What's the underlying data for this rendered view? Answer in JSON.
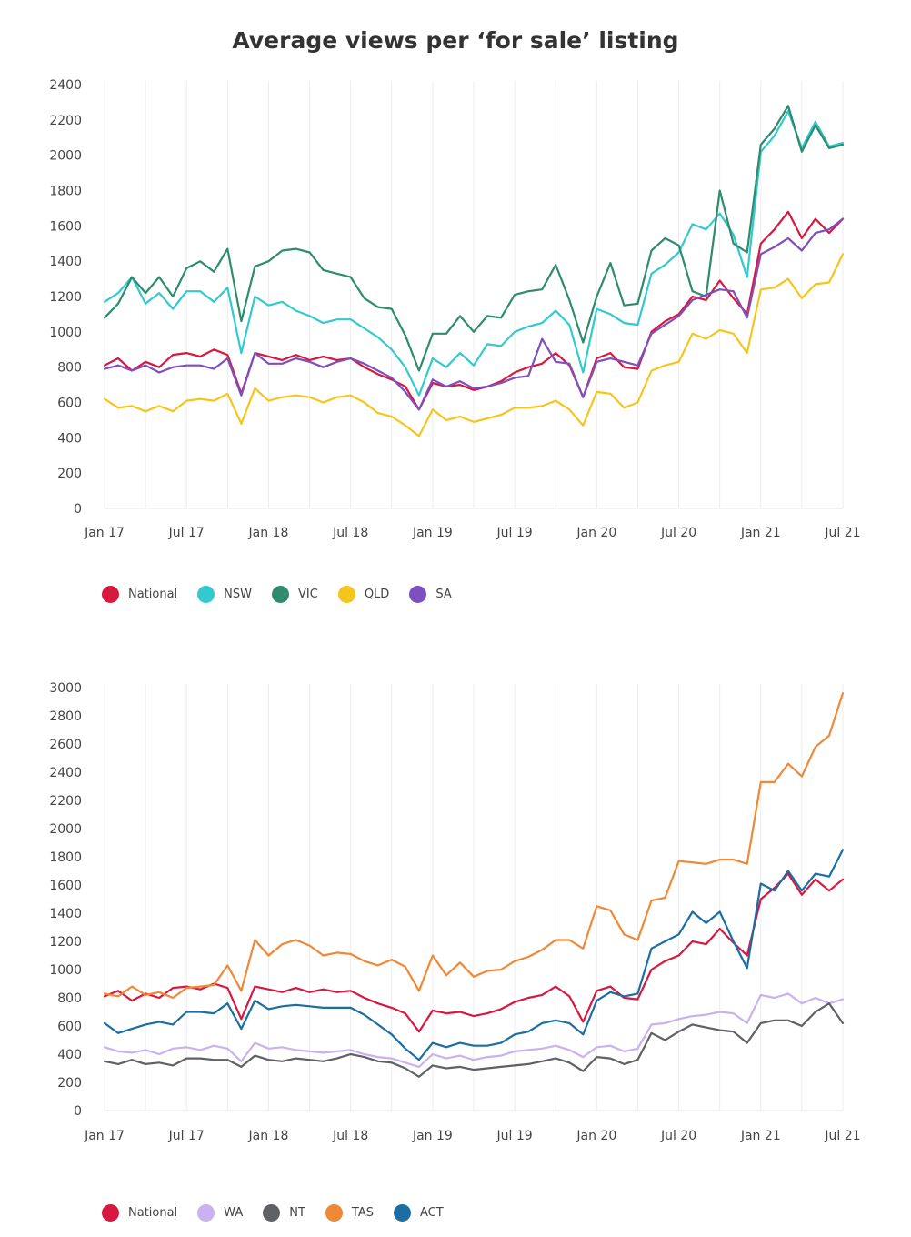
{
  "title": "Average views per ‘for sale’ listing",
  "chart_data": [
    {
      "type": "line",
      "x_tick_labels": [
        "Jan 17",
        "Jul 17",
        "Jan 18",
        "Jul 18",
        "Jan 19",
        "Jul 19",
        "Jan 20",
        "Jul 20",
        "Jan 21",
        "Jul 21"
      ],
      "ylim": [
        0,
        2400
      ],
      "y_ticks": [
        0,
        200,
        400,
        600,
        800,
        1000,
        1200,
        1400,
        1600,
        1800,
        2000,
        2200,
        2400
      ],
      "grid": "vertical",
      "legend_position": "bottom-left",
      "x_points": [
        "Jan 17",
        "Feb 17",
        "Mar 17",
        "Apr 17",
        "May 17",
        "Jun 17",
        "Jul 17",
        "Aug 17",
        "Sep 17",
        "Oct 17",
        "Nov 17",
        "Dec 17",
        "Jan 18",
        "Feb 18",
        "Mar 18",
        "Apr 18",
        "May 18",
        "Jun 18",
        "Jul 18",
        "Aug 18",
        "Sep 18",
        "Oct 18",
        "Nov 18",
        "Dec 18",
        "Jan 19",
        "Feb 19",
        "Mar 19",
        "Apr 19",
        "May 19",
        "Jun 19",
        "Jul 19",
        "Aug 19",
        "Sep 19",
        "Oct 19",
        "Nov 19",
        "Dec 19",
        "Jan 20",
        "Feb 20",
        "Mar 20",
        "Apr 20",
        "May 20",
        "Jun 20",
        "Jul 20",
        "Aug 20",
        "Sep 20",
        "Oct 20",
        "Nov 20",
        "Dec 20",
        "Jan 21",
        "Feb 21",
        "Mar 21",
        "Apr 21",
        "May 21",
        "Jun 21",
        "Jul 21"
      ],
      "series": [
        {
          "name": "National",
          "color": "#d7183f",
          "values": [
            810,
            850,
            780,
            830,
            800,
            870,
            880,
            860,
            900,
            870,
            650,
            880,
            860,
            840,
            870,
            840,
            860,
            840,
            850,
            800,
            760,
            730,
            690,
            560,
            710,
            690,
            700,
            670,
            690,
            720,
            770,
            800,
            820,
            880,
            810,
            630,
            850,
            880,
            800,
            790,
            1000,
            1060,
            1100,
            1200,
            1180,
            1290,
            1190,
            1100,
            1500,
            1580,
            1680,
            1530,
            1640,
            1560,
            1640
          ]
        },
        {
          "name": "NSW",
          "color": "#32c9cf",
          "values": [
            1170,
            1220,
            1310,
            1160,
            1220,
            1130,
            1230,
            1230,
            1170,
            1250,
            880,
            1200,
            1150,
            1170,
            1120,
            1090,
            1050,
            1070,
            1070,
            1020,
            970,
            900,
            800,
            640,
            850,
            800,
            880,
            810,
            930,
            920,
            1000,
            1030,
            1050,
            1120,
            1040,
            770,
            1130,
            1100,
            1050,
            1040,
            1330,
            1380,
            1450,
            1610,
            1580,
            1670,
            1550,
            1310,
            2020,
            2110,
            2250,
            2040,
            2190,
            2050,
            2070
          ]
        },
        {
          "name": "VIC",
          "color": "#2e8b6e",
          "values": [
            1080,
            1160,
            1310,
            1220,
            1310,
            1200,
            1360,
            1400,
            1340,
            1470,
            1060,
            1370,
            1400,
            1460,
            1470,
            1450,
            1350,
            1330,
            1310,
            1190,
            1140,
            1130,
            980,
            780,
            990,
            990,
            1090,
            1000,
            1090,
            1080,
            1210,
            1230,
            1240,
            1380,
            1180,
            940,
            1200,
            1390,
            1150,
            1160,
            1460,
            1530,
            1490,
            1230,
            1200,
            1800,
            1500,
            1450,
            2060,
            2150,
            2280,
            2020,
            2170,
            2040,
            2060
          ]
        },
        {
          "name": "QLD",
          "color": "#f5c51d",
          "values": [
            620,
            570,
            580,
            550,
            580,
            550,
            610,
            620,
            610,
            650,
            480,
            680,
            610,
            630,
            640,
            630,
            600,
            630,
            640,
            600,
            540,
            520,
            470,
            410,
            560,
            500,
            520,
            490,
            510,
            530,
            570,
            570,
            580,
            610,
            560,
            470,
            660,
            650,
            570,
            600,
            780,
            810,
            830,
            990,
            960,
            1010,
            990,
            880,
            1240,
            1250,
            1300,
            1190,
            1270,
            1280,
            1440
          ]
        },
        {
          "name": "SA",
          "color": "#7d4fbf",
          "values": [
            790,
            810,
            780,
            810,
            770,
            800,
            810,
            810,
            790,
            850,
            640,
            880,
            820,
            820,
            850,
            830,
            800,
            830,
            850,
            820,
            780,
            740,
            660,
            560,
            730,
            690,
            720,
            680,
            690,
            710,
            740,
            750,
            960,
            830,
            820,
            630,
            830,
            850,
            830,
            810,
            990,
            1040,
            1090,
            1180,
            1210,
            1240,
            1230,
            1080,
            1440,
            1480,
            1530,
            1460,
            1560,
            1580,
            1640
          ]
        }
      ]
    },
    {
      "type": "line",
      "x_tick_labels": [
        "Jan 17",
        "Jul 17",
        "Jan 18",
        "Jul 18",
        "Jan 19",
        "Jul 19",
        "Jan 20",
        "Jul 20",
        "Jan 21",
        "Jul 21"
      ],
      "ylim": [
        0,
        3000
      ],
      "y_ticks": [
        0,
        200,
        400,
        600,
        800,
        1000,
        1200,
        1400,
        1600,
        1800,
        2000,
        2200,
        2400,
        2600,
        2800,
        3000
      ],
      "grid": "vertical",
      "legend_position": "bottom-left",
      "x_points": [
        "Jan 17",
        "Feb 17",
        "Mar 17",
        "Apr 17",
        "May 17",
        "Jun 17",
        "Jul 17",
        "Aug 17",
        "Sep 17",
        "Oct 17",
        "Nov 17",
        "Dec 17",
        "Jan 18",
        "Feb 18",
        "Mar 18",
        "Apr 18",
        "May 18",
        "Jun 18",
        "Jul 18",
        "Aug 18",
        "Sep 18",
        "Oct 18",
        "Nov 18",
        "Dec 18",
        "Jan 19",
        "Feb 19",
        "Mar 19",
        "Apr 19",
        "May 19",
        "Jun 19",
        "Jul 19",
        "Aug 19",
        "Sep 19",
        "Oct 19",
        "Nov 19",
        "Dec 19",
        "Jan 20",
        "Feb 20",
        "Mar 20",
        "Apr 20",
        "May 20",
        "Jun 20",
        "Jul 20",
        "Aug 20",
        "Sep 20",
        "Oct 20",
        "Nov 20",
        "Dec 20",
        "Jan 21",
        "Feb 21",
        "Mar 21",
        "Apr 21",
        "May 21",
        "Jun 21",
        "Jul 21"
      ],
      "series": [
        {
          "name": "National",
          "color": "#d7183f",
          "values": [
            810,
            850,
            780,
            830,
            800,
            870,
            880,
            860,
            900,
            870,
            650,
            880,
            860,
            840,
            870,
            840,
            860,
            840,
            850,
            800,
            760,
            730,
            690,
            560,
            710,
            690,
            700,
            670,
            690,
            720,
            770,
            800,
            820,
            880,
            810,
            630,
            850,
            880,
            800,
            790,
            1000,
            1060,
            1100,
            1200,
            1180,
            1290,
            1190,
            1100,
            1500,
            1580,
            1680,
            1530,
            1640,
            1560,
            1640
          ]
        },
        {
          "name": "WA",
          "color": "#c9b2ef",
          "values": [
            450,
            420,
            410,
            430,
            400,
            440,
            450,
            430,
            460,
            440,
            350,
            480,
            440,
            450,
            430,
            420,
            410,
            420,
            430,
            400,
            380,
            370,
            340,
            310,
            400,
            370,
            390,
            360,
            380,
            390,
            420,
            430,
            440,
            460,
            430,
            380,
            450,
            460,
            420,
            440,
            610,
            620,
            650,
            670,
            680,
            700,
            690,
            620,
            820,
            800,
            830,
            760,
            800,
            760,
            790
          ]
        },
        {
          "name": "NT",
          "color": "#5e6166",
          "values": [
            350,
            330,
            360,
            330,
            340,
            320,
            370,
            370,
            360,
            360,
            310,
            390,
            360,
            350,
            370,
            360,
            350,
            370,
            400,
            380,
            350,
            340,
            300,
            240,
            320,
            300,
            310,
            290,
            300,
            310,
            320,
            330,
            350,
            370,
            340,
            280,
            380,
            370,
            330,
            360,
            550,
            500,
            560,
            610,
            590,
            570,
            560,
            480,
            620,
            640,
            640,
            600,
            700,
            760,
            620
          ]
        },
        {
          "name": "TAS",
          "color": "#ef8936",
          "values": [
            830,
            810,
            880,
            820,
            840,
            800,
            870,
            880,
            890,
            1030,
            850,
            1210,
            1100,
            1180,
            1210,
            1170,
            1100,
            1120,
            1110,
            1060,
            1030,
            1070,
            1020,
            850,
            1100,
            960,
            1050,
            950,
            990,
            1000,
            1060,
            1090,
            1140,
            1210,
            1210,
            1150,
            1450,
            1420,
            1250,
            1210,
            1490,
            1510,
            1770,
            1760,
            1750,
            1780,
            1780,
            1750,
            2330,
            2330,
            2460,
            2370,
            2580,
            2660,
            2960
          ]
        },
        {
          "name": "ACT",
          "color": "#1a6ea3",
          "values": [
            620,
            550,
            580,
            610,
            630,
            610,
            700,
            700,
            690,
            760,
            580,
            780,
            720,
            740,
            750,
            740,
            730,
            730,
            730,
            680,
            610,
            540,
            440,
            360,
            480,
            450,
            480,
            460,
            460,
            480,
            540,
            560,
            620,
            640,
            620,
            540,
            780,
            840,
            810,
            830,
            1150,
            1200,
            1250,
            1410,
            1330,
            1410,
            1200,
            1010,
            1610,
            1560,
            1700,
            1560,
            1680,
            1660,
            1850
          ]
        }
      ]
    }
  ]
}
